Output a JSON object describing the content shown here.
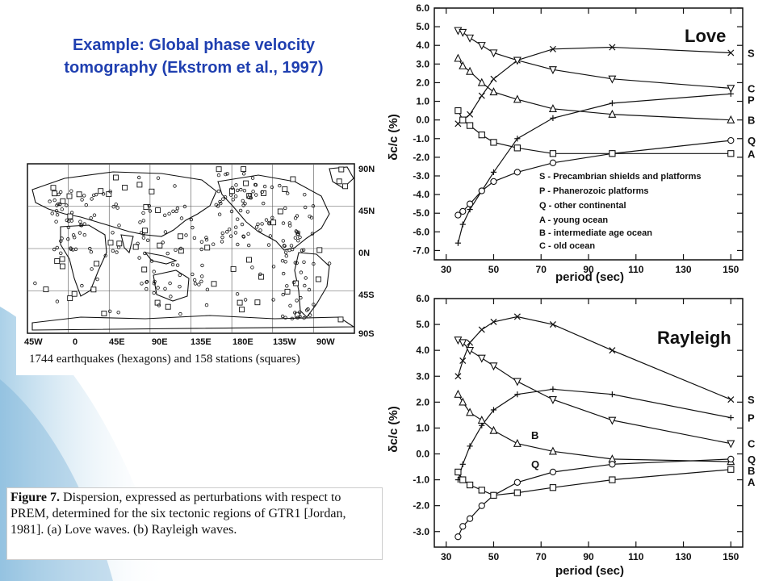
{
  "slide": {
    "title_line1": "Example: Global phase velocity",
    "title_line2": "tomography  (Ekstrom et al., 1997)",
    "map_caption": "1744 earthquakes (hexagons) and 158 stations (squares)",
    "figure_caption": {
      "label": "Figure 7.",
      "text": "Dispersion, expressed as perturbations with respect to PREM, determined for the six tectonic regions of GTR1 [Jordan, 1981]. (a) Love waves. (b) Rayleigh waves."
    }
  },
  "map": {
    "lon_labels": [
      "45W",
      "0",
      "45E",
      "90E",
      "135E",
      "180E",
      "135W",
      "90W"
    ],
    "lat_labels": [
      "90N",
      "45N",
      "0N",
      "45S",
      "90S"
    ]
  },
  "colors": {
    "title": "#1f3fb0",
    "background_accent": "#8fc1e0"
  },
  "chart_data": [
    {
      "type": "line",
      "title": "Love",
      "xlabel": "period (sec)",
      "ylabel": "δc/c (%)",
      "xlim": [
        25,
        155
      ],
      "ylim": [
        -7.5,
        6.0
      ],
      "xticks": [
        30,
        50,
        70,
        90,
        110,
        130,
        150
      ],
      "yticks": [
        "6.0",
        "5.0",
        "4.0",
        "3.0",
        "2.0",
        "1.0",
        "0.0",
        "-1.0",
        "-2.0",
        "-3.0",
        "-4.0",
        "-5.0",
        "-6.0",
        "-7.0"
      ],
      "legend": [
        "S - Precambrian shields and platforms",
        "P - Phanerozoic platforms",
        "Q - other continental",
        "A - young ocean",
        "B - intermediate age ocean",
        "C - old ocean"
      ],
      "legend_position": "bottom-right",
      "series": [
        {
          "name": "S",
          "marker": "x",
          "x": [
            35,
            40,
            45,
            50,
            60,
            75,
            100,
            150
          ],
          "y": [
            -0.2,
            0.3,
            1.3,
            2.2,
            3.2,
            3.8,
            3.9,
            3.6
          ]
        },
        {
          "name": "C",
          "marker": "triangle-down",
          "x": [
            35,
            37,
            40,
            45,
            50,
            60,
            75,
            100,
            150
          ],
          "y": [
            4.8,
            4.7,
            4.4,
            4.0,
            3.6,
            3.2,
            2.7,
            2.2,
            1.7
          ]
        },
        {
          "name": "P",
          "marker": "plus",
          "x": [
            35,
            37,
            40,
            45,
            50,
            60,
            75,
            100,
            150
          ],
          "y": [
            -6.6,
            -5.6,
            -4.8,
            -3.8,
            -2.8,
            -1.0,
            0.1,
            0.9,
            1.4
          ]
        },
        {
          "name": "B",
          "marker": "triangle",
          "x": [
            35,
            37,
            40,
            45,
            50,
            60,
            75,
            100,
            150
          ],
          "y": [
            3.3,
            2.9,
            2.6,
            2.0,
            1.5,
            1.1,
            0.6,
            0.3,
            0.0
          ]
        },
        {
          "name": "Q",
          "marker": "circle",
          "x": [
            35,
            37,
            40,
            45,
            50,
            60,
            75,
            100,
            150
          ],
          "y": [
            -5.1,
            -4.9,
            -4.5,
            -3.8,
            -3.3,
            -2.8,
            -2.3,
            -1.8,
            -1.1
          ]
        },
        {
          "name": "A",
          "marker": "square",
          "x": [
            35,
            37,
            40,
            45,
            50,
            60,
            75,
            100,
            150
          ],
          "y": [
            0.5,
            0.0,
            -0.3,
            -0.8,
            -1.2,
            -1.5,
            -1.8,
            -1.8,
            -1.8
          ]
        }
      ]
    },
    {
      "type": "line",
      "title": "Rayleigh",
      "xlabel": "period (sec)",
      "ylabel": "δc/c (%)",
      "xlim": [
        25,
        155
      ],
      "ylim": [
        -3.6,
        6.0
      ],
      "xticks": [
        30,
        50,
        70,
        90,
        110,
        130,
        150
      ],
      "yticks": [
        "6.0",
        "5.0",
        "4.0",
        "3.0",
        "2.0",
        "1.0",
        "0.0",
        "-1.0",
        "-2.0",
        "-3.0"
      ],
      "annotations": [
        "B",
        "Q"
      ],
      "series": [
        {
          "name": "S",
          "marker": "x",
          "x": [
            35,
            37,
            40,
            45,
            50,
            60,
            75,
            100,
            150
          ],
          "y": [
            3.0,
            3.6,
            4.3,
            4.8,
            5.1,
            5.3,
            5.0,
            4.0,
            2.1
          ]
        },
        {
          "name": "P",
          "marker": "plus",
          "x": [
            35,
            37,
            40,
            45,
            50,
            60,
            75,
            100,
            150
          ],
          "y": [
            -1.0,
            -0.4,
            0.3,
            1.1,
            1.7,
            2.3,
            2.5,
            2.3,
            1.4
          ]
        },
        {
          "name": "C",
          "marker": "triangle-down",
          "x": [
            35,
            37,
            40,
            45,
            50,
            60,
            75,
            100,
            150
          ],
          "y": [
            4.4,
            4.3,
            4.0,
            3.7,
            3.4,
            2.8,
            2.1,
            1.3,
            0.4
          ]
        },
        {
          "name": "B",
          "marker": "triangle",
          "x": [
            35,
            37,
            40,
            45,
            50,
            60,
            75,
            100,
            150
          ],
          "y": [
            2.3,
            2.0,
            1.6,
            1.3,
            0.9,
            0.4,
            0.1,
            -0.2,
            -0.3
          ]
        },
        {
          "name": "Q",
          "marker": "circle",
          "x": [
            35,
            37,
            40,
            45,
            50,
            60,
            75,
            100,
            150
          ],
          "y": [
            -3.2,
            -2.8,
            -2.5,
            -2.0,
            -1.6,
            -1.1,
            -0.7,
            -0.4,
            -0.2
          ]
        },
        {
          "name": "A",
          "marker": "square",
          "x": [
            35,
            37,
            40,
            45,
            50,
            60,
            75,
            100,
            150
          ],
          "y": [
            -0.7,
            -1.0,
            -1.2,
            -1.4,
            -1.6,
            -1.5,
            -1.3,
            -1.0,
            -0.6
          ]
        }
      ]
    }
  ]
}
